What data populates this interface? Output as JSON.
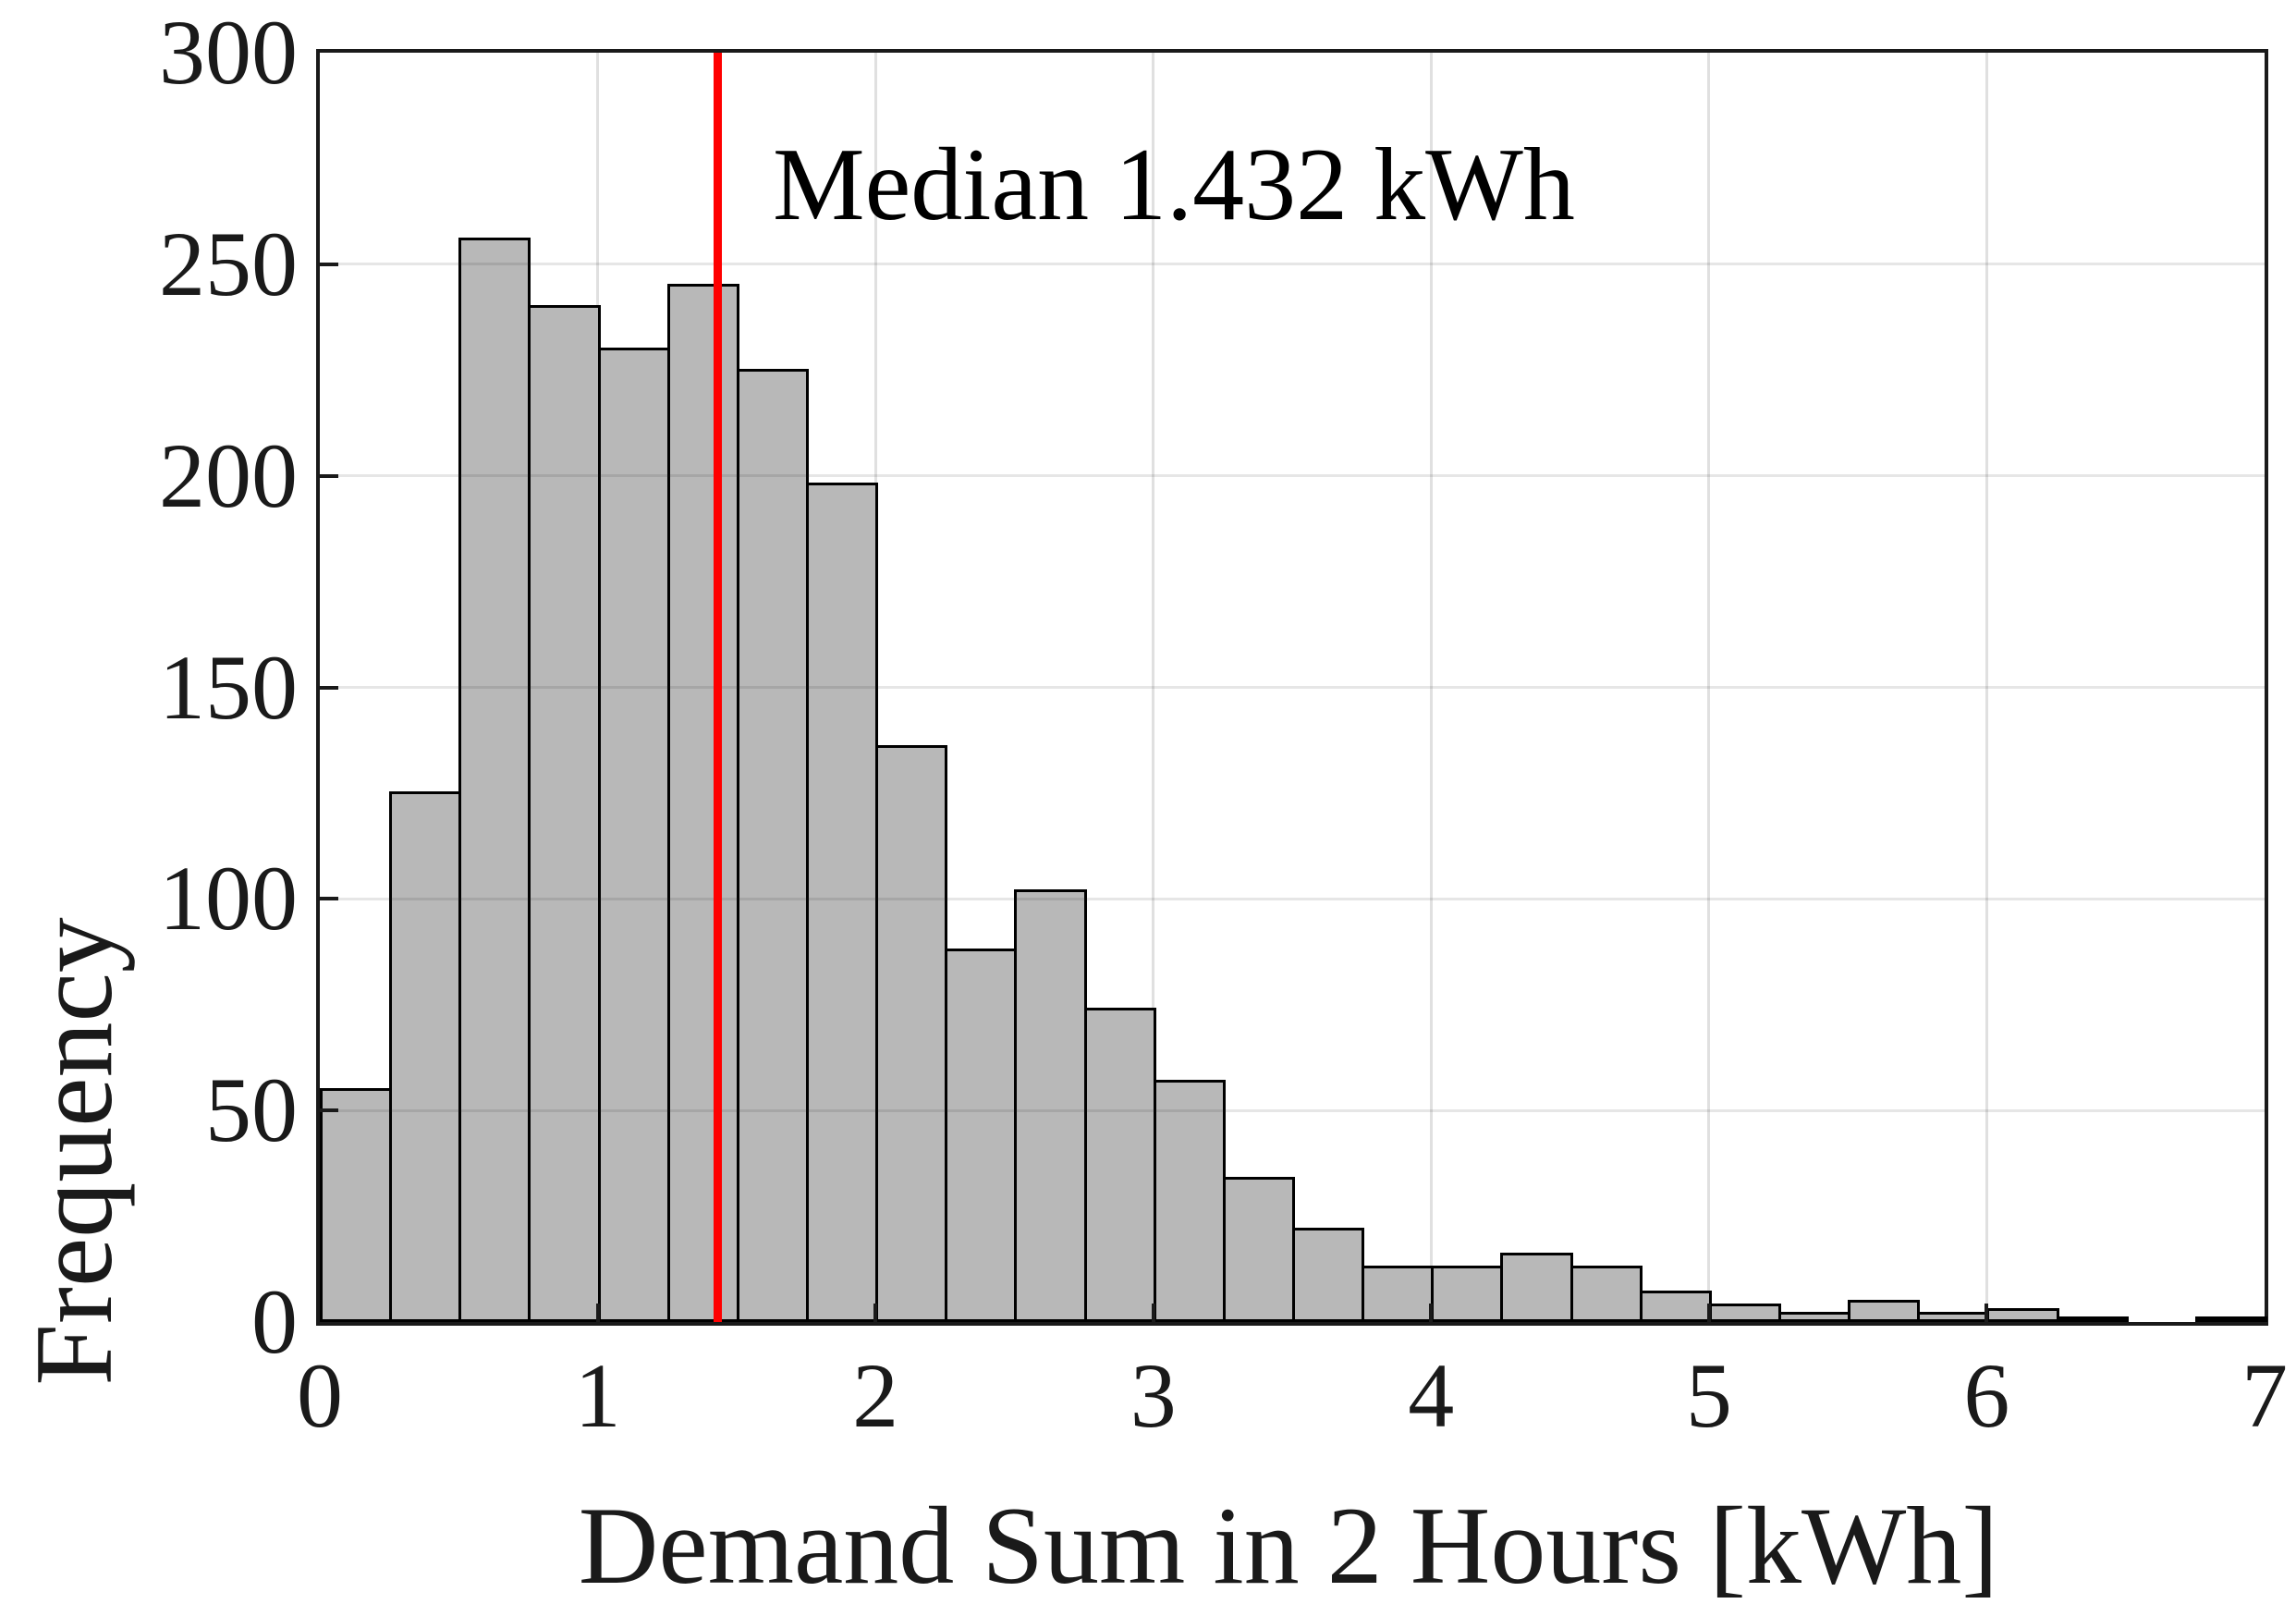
{
  "chart_data": {
    "type": "bar",
    "subtype": "histogram",
    "title": "",
    "xlabel": "Demand Sum in 2 Hours [kWh]",
    "ylabel": "Frequency",
    "annotation": "Median 1.432 kWh",
    "median_value_kwh": 1.432,
    "bin_start": 0,
    "bin_width": 0.25,
    "frequencies": [
      55,
      125,
      256,
      240,
      230,
      245,
      225,
      198,
      136,
      88,
      102,
      74,
      57,
      34,
      22,
      13,
      13,
      16,
      13,
      7,
      4,
      2,
      5,
      2,
      3,
      1,
      0,
      1
    ],
    "xlim": [
      0,
      7
    ],
    "ylim": [
      0,
      300
    ],
    "x_ticks": [
      "0",
      "1",
      "2",
      "3",
      "4",
      "5",
      "6",
      "7"
    ],
    "y_ticks": [
      "0",
      "50",
      "100",
      "150",
      "200",
      "250",
      "300"
    ],
    "grid": "on",
    "legend": "none",
    "colors": {
      "bar_fill": "#b8b8b8",
      "bar_edge": "#000000",
      "median_line": "#ff0000",
      "axis": "#1a1a1a",
      "grid_line": "#e0e0e0",
      "text": "#000000"
    }
  }
}
